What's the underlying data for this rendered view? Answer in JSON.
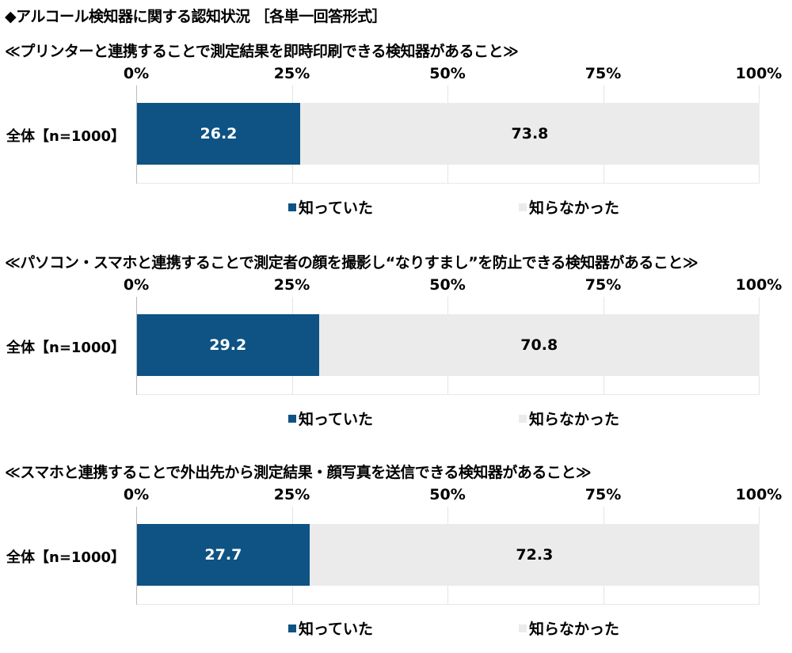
{
  "title": "◆アルコール検知器に関する認知状況 ［各単一回答形式］",
  "colors": {
    "known": "#0e5384",
    "unknown": "#ebebeb"
  },
  "chart_data": [
    {
      "type": "bar",
      "orientation": "horizontal-stacked-100",
      "title": "≪プリンターと連携することで測定結果を即時印刷できる検知器があること≫",
      "categories": [
        "全体【n=1000】"
      ],
      "series": [
        {
          "name": "知っていた",
          "values": [
            26.2
          ]
        },
        {
          "name": "知らなかった",
          "values": [
            73.8
          ]
        }
      ],
      "xticks": [
        "0%",
        "25%",
        "50%",
        "75%",
        "100%"
      ],
      "xlim": [
        0,
        100
      ],
      "grid": true,
      "legend": "bottom"
    },
    {
      "type": "bar",
      "orientation": "horizontal-stacked-100",
      "title": "≪パソコン・スマホと連携することで測定者の顔を撮影し“なりすまし”を防止できる検知器があること≫",
      "categories": [
        "全体【n=1000】"
      ],
      "series": [
        {
          "name": "知っていた",
          "values": [
            29.2
          ]
        },
        {
          "name": "知らなかった",
          "values": [
            70.8
          ]
        }
      ],
      "xticks": [
        "0%",
        "25%",
        "50%",
        "75%",
        "100%"
      ],
      "xlim": [
        0,
        100
      ],
      "grid": true,
      "legend": "bottom"
    },
    {
      "type": "bar",
      "orientation": "horizontal-stacked-100",
      "title": "≪スマホと連携することで外出先から測定結果・顔写真を送信できる検知器があること≫",
      "categories": [
        "全体【n=1000】"
      ],
      "series": [
        {
          "name": "知っていた",
          "values": [
            27.7
          ]
        },
        {
          "name": "知らなかった",
          "values": [
            72.3
          ]
        }
      ],
      "xticks": [
        "0%",
        "25%",
        "50%",
        "75%",
        "100%"
      ],
      "xlim": [
        0,
        100
      ],
      "grid": true,
      "legend": "bottom"
    }
  ]
}
